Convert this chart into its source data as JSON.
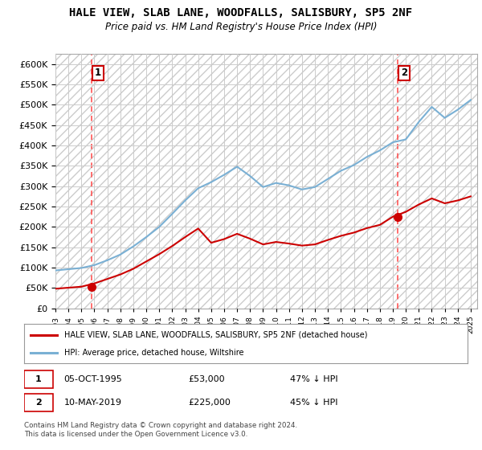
{
  "title": "HALE VIEW, SLAB LANE, WOODFALLS, SALISBURY, SP5 2NF",
  "subtitle": "Price paid vs. HM Land Registry's House Price Index (HPI)",
  "ytick_labels": [
    "£0",
    "£50K",
    "£100K",
    "£150K",
    "£200K",
    "£250K",
    "£300K",
    "£350K",
    "£400K",
    "£450K",
    "£500K",
    "£550K",
    "£600K"
  ],
  "ytick_values": [
    0,
    50000,
    100000,
    150000,
    200000,
    250000,
    300000,
    350000,
    400000,
    450000,
    500000,
    550000,
    600000
  ],
  "ylim": [
    0,
    625000
  ],
  "xlim": [
    1993,
    2025.5
  ],
  "xtick_years": [
    1993,
    1994,
    1995,
    1996,
    1997,
    1998,
    1999,
    2000,
    2001,
    2002,
    2003,
    2004,
    2005,
    2006,
    2007,
    2008,
    2009,
    2010,
    2011,
    2012,
    2013,
    2014,
    2015,
    2016,
    2017,
    2018,
    2019,
    2020,
    2021,
    2022,
    2023,
    2024,
    2025
  ],
  "hpi_years": [
    1993,
    1994,
    1995,
    1996,
    1997,
    1998,
    1999,
    2000,
    2001,
    2002,
    2003,
    2004,
    2005,
    2006,
    2007,
    2008,
    2009,
    2010,
    2011,
    2012,
    2013,
    2014,
    2015,
    2016,
    2017,
    2018,
    2019,
    2020,
    2021,
    2022,
    2023,
    2024,
    2025
  ],
  "hpi_values": [
    93000,
    96000,
    99000,
    106000,
    118000,
    132000,
    152000,
    175000,
    200000,
    232000,
    265000,
    295000,
    310000,
    328000,
    348000,
    325000,
    298000,
    308000,
    302000,
    292000,
    298000,
    318000,
    338000,
    352000,
    372000,
    388000,
    408000,
    415000,
    458000,
    495000,
    468000,
    488000,
    512000
  ],
  "red_years": [
    1993,
    1994,
    1995,
    1996,
    1997,
    1998,
    1999,
    2000,
    2001,
    2002,
    2003,
    2004,
    2005,
    2006,
    2007,
    2008,
    2009,
    2010,
    2011,
    2012,
    2013,
    2014,
    2015,
    2016,
    2017,
    2018,
    2019,
    2020,
    2021,
    2022,
    2023,
    2024,
    2025
  ],
  "red_values": [
    48000,
    50500,
    53000,
    61000,
    72000,
    83000,
    97000,
    115000,
    133000,
    153000,
    175000,
    196000,
    161000,
    170000,
    183000,
    171000,
    157000,
    163000,
    159000,
    154000,
    157000,
    168000,
    178000,
    186000,
    197000,
    205000,
    225000,
    237000,
    255000,
    270000,
    258000,
    265000,
    275000
  ],
  "sale1_year": 1995.76,
  "sale1_price": 53000,
  "sale2_year": 2019.36,
  "sale2_price": 225000,
  "legend_line1": "HALE VIEW, SLAB LANE, WOODFALLS, SALISBURY, SP5 2NF (detached house)",
  "legend_line2": "HPI: Average price, detached house, Wiltshire",
  "footer": "Contains HM Land Registry data © Crown copyright and database right 2024.\nThis data is licensed under the Open Government Licence v3.0.",
  "red_color": "#cc0000",
  "blue_color": "#7ab0d4",
  "dash_color": "#ff5555",
  "grid_color": "#cccccc",
  "label1": "1",
  "label2": "2",
  "ann1_date": "05-OCT-1995",
  "ann1_price": "£53,000",
  "ann1_pct": "47% ↓ HPI",
  "ann2_date": "10-MAY-2019",
  "ann2_price": "£225,000",
  "ann2_pct": "45% ↓ HPI"
}
